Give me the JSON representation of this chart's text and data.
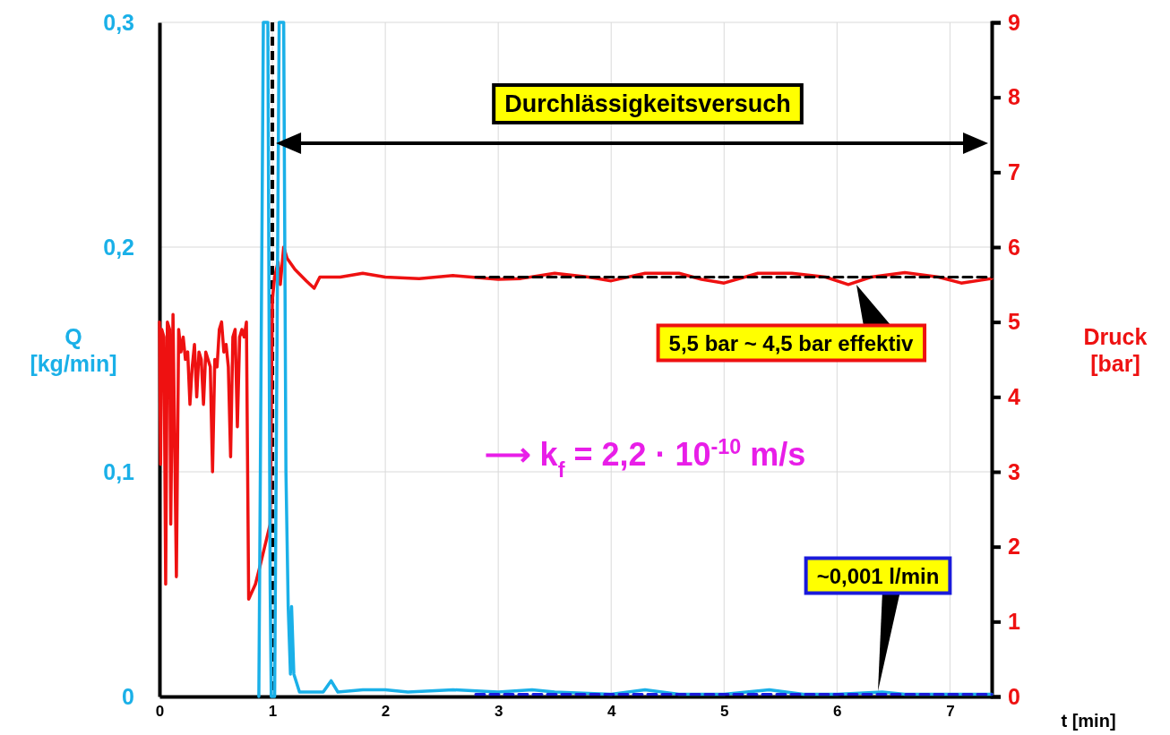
{
  "chart_data": {
    "type": "line",
    "xlabel": "t [min]",
    "ylabel": "Q [kg/min]",
    "y2label": "Druck [bar]",
    "xlim": [
      0,
      7.37
    ],
    "xticks": [
      0,
      1,
      2,
      3,
      4,
      5,
      6,
      7
    ],
    "ylim": [
      0,
      0.3
    ],
    "yticks": [
      0,
      {
        "value": 0.1,
        "label": "0,1"
      },
      {
        "value": 0.2,
        "label": "0,2"
      },
      {
        "value": 0.3,
        "label": "0,3"
      }
    ],
    "y2lim": [
      0,
      9
    ],
    "y2ticks": [
      0,
      1,
      2,
      3,
      4,
      5,
      6,
      7,
      8,
      9
    ],
    "grid": true,
    "marker": "none",
    "series": [
      {
        "color": "#ee1111",
        "axis": "y2",
        "line_style": "solid",
        "x": [
          0,
          0.01,
          0.02,
          0.04,
          0.055,
          0.07,
          0.09,
          0.1,
          0.12,
          0.15,
          0.17,
          0.19,
          0.21,
          0.23,
          0.25,
          0.27,
          0.29,
          0.31,
          0.33,
          0.35,
          0.37,
          0.39,
          0.41,
          0.43,
          0.45,
          0.47,
          0.49,
          0.51,
          0.53,
          0.55,
          0.57,
          0.59,
          0.61,
          0.63,
          0.65,
          0.67,
          0.69,
          0.71,
          0.73,
          0.75,
          0.77,
          0.79,
          0.85,
          0.9,
          0.98,
          1.0,
          1.02,
          1.05,
          1.07,
          1.1,
          1.13,
          1.2,
          1.3,
          1.37,
          1.42,
          1.6,
          1.8,
          2.0,
          2.3,
          2.6,
          3.0,
          3.2,
          3.5,
          3.8,
          4.0,
          4.3,
          4.6,
          4.8,
          5.0,
          5.3,
          5.6,
          5.9,
          6.1,
          6.3,
          6.6,
          6.9,
          7.1,
          7.37
        ],
        "values": [
          5.0,
          3.1,
          4.9,
          4.8,
          1.5,
          5.0,
          4.9,
          2.3,
          5.1,
          1.6,
          4.9,
          4.6,
          4.8,
          4.5,
          4.6,
          3.9,
          4.4,
          4.7,
          4.0,
          4.6,
          4.5,
          3.9,
          4.6,
          4.5,
          4.4,
          3.0,
          4.5,
          4.4,
          4.9,
          5.0,
          4.6,
          4.7,
          4.4,
          3.2,
          4.8,
          4.9,
          3.6,
          4.8,
          4.9,
          4.8,
          5.0,
          1.3,
          1.5,
          1.8,
          2.3,
          5.3,
          5.6,
          5.8,
          5.5,
          6.0,
          5.85,
          5.7,
          5.55,
          5.45,
          5.6,
          5.6,
          5.65,
          5.6,
          5.58,
          5.62,
          5.57,
          5.58,
          5.65,
          5.6,
          5.55,
          5.65,
          5.65,
          5.57,
          5.52,
          5.65,
          5.65,
          5.6,
          5.5,
          5.6,
          5.66,
          5.6,
          5.52,
          5.58
        ]
      },
      {
        "color": "#000000",
        "axis": "y2",
        "line_style": "dashed",
        "x": [
          2.8,
          7.37
        ],
        "values": [
          5.6,
          5.6
        ]
      },
      {
        "color": "#1ab0e8",
        "line_style": "solid",
        "x": [
          0.88,
          0.9,
          0.92,
          0.96,
          0.98,
          0.99,
          1.02,
          1.04,
          1.06,
          1.1,
          1.12,
          1.14,
          1.16,
          1.17,
          1.19,
          1.24,
          1.45,
          1.52,
          1.58,
          1.8,
          2.0,
          2.2,
          2.6,
          3.0,
          3.3,
          3.5,
          4.0,
          4.3,
          4.6,
          5.0,
          5.4,
          5.7,
          6.0,
          6.4,
          6.6,
          7.37
        ],
        "values": [
          0,
          0.15,
          0.3,
          0.3,
          0.05,
          0,
          0,
          0.15,
          0.3,
          0.3,
          0.1,
          0.04,
          0.01,
          0.04,
          0.01,
          0.002,
          0.002,
          0.007,
          0.002,
          0.003,
          0.003,
          0.002,
          0.003,
          0.002,
          0.003,
          0.002,
          0.001,
          0.003,
          0.001,
          0.001,
          0.003,
          0.001,
          0.001,
          0.002,
          0.001,
          0.001
        ]
      },
      {
        "color": "#1a1adb",
        "line_style": "dashed",
        "x": [
          2.8,
          7.37
        ],
        "values": [
          0.001,
          0.001
        ]
      }
    ],
    "ref_lines": [
      {
        "axis": "x",
        "value": 1,
        "color": "#000000",
        "line_style": "dashed"
      }
    ],
    "annotations": [
      "Durchlässigkeitsversuch",
      "5,5 bar ~ 4,5 bar effektiv",
      "~0,001 l/min",
      "⟶ k$_{f}$ = 2,2 · 10$^{-10}$ m/s"
    ]
  }
}
